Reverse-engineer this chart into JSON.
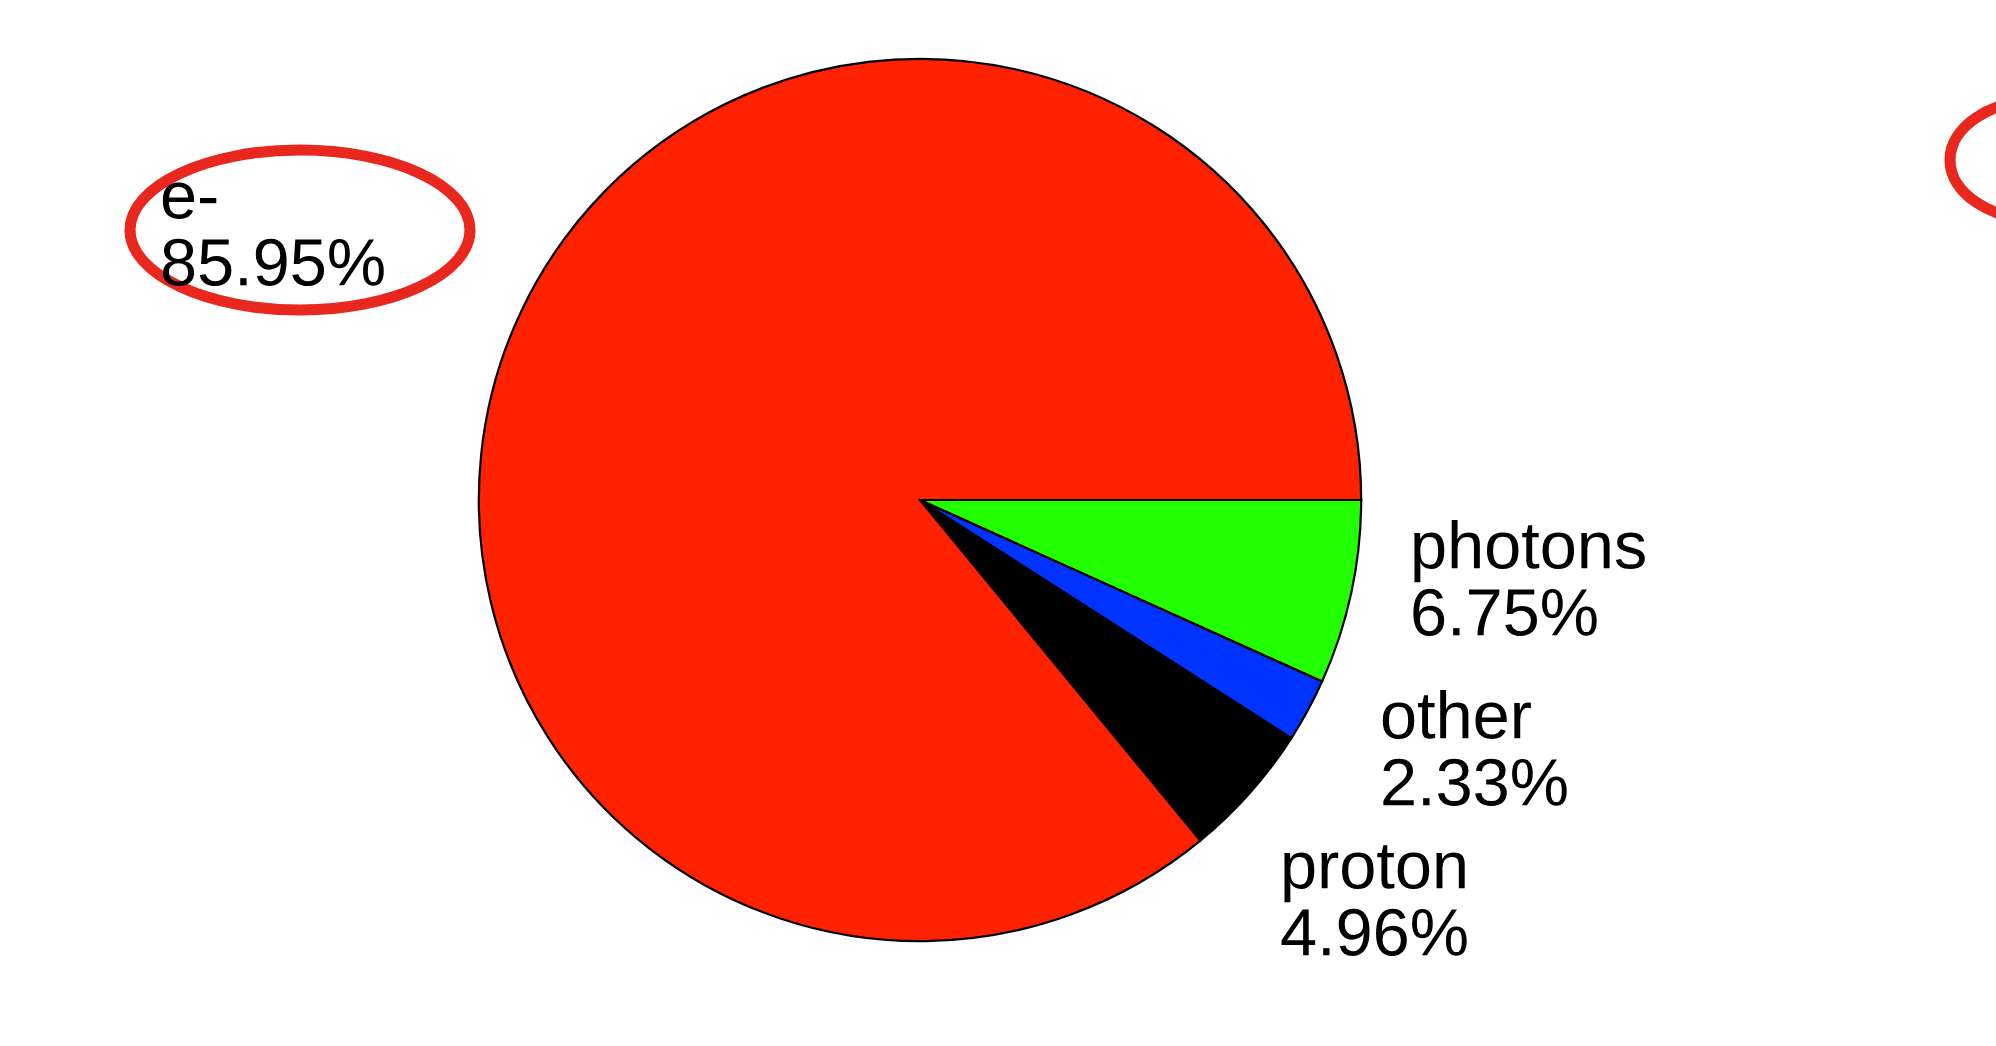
{
  "chart_data": {
    "type": "pie",
    "categories": [
      "photons",
      "other",
      "proton",
      "e-"
    ],
    "values": [
      6.75,
      2.33,
      4.96,
      85.95
    ],
    "value_labels": [
      "6.75%",
      "2.33%",
      "4.96%",
      "85.95%"
    ],
    "colors": [
      "#22ff00",
      "#0033ff",
      "#000000",
      "#ff2200"
    ]
  }
}
